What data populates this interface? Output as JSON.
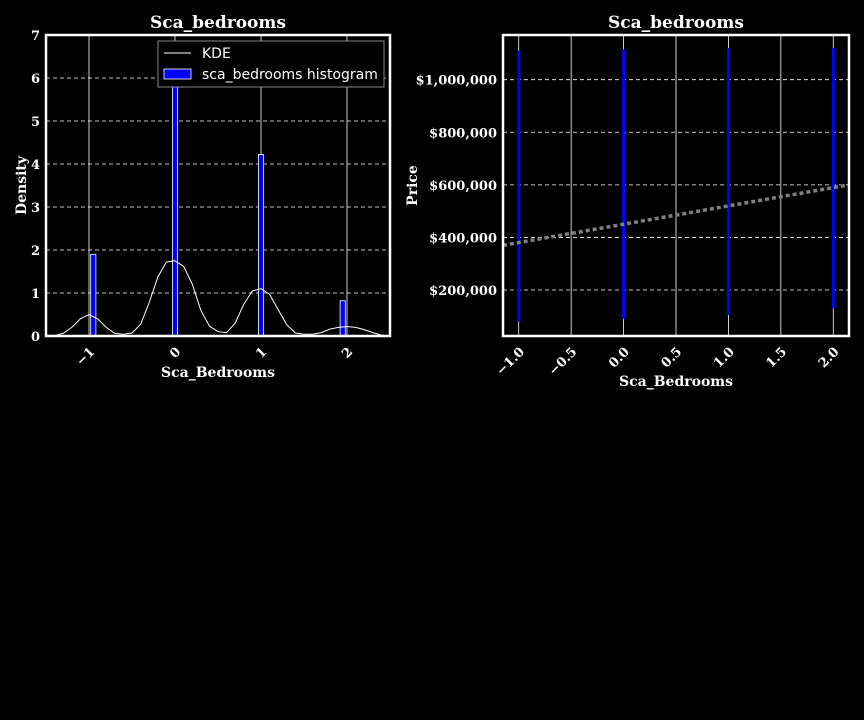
{
  "chart_data": [
    {
      "type": "bar",
      "title": "Sca_bedrooms",
      "xlabel": "Sca_Bedrooms",
      "ylabel": "Density",
      "xlim": [
        -1.5,
        2.5
      ],
      "ylim": [
        0,
        7
      ],
      "x_ticks": [
        -1,
        0,
        1,
        2
      ],
      "x_tick_labels": [
        "−1",
        "0",
        "1",
        "2"
      ],
      "y_ticks": [
        0,
        1,
        2,
        3,
        4,
        5,
        6,
        7
      ],
      "y_tick_labels": [
        "0",
        "1",
        "2",
        "3",
        "4",
        "5",
        "6",
        "7"
      ],
      "grid": "y",
      "legend_position": "top-right",
      "legend": [
        "KDE",
        "sca_bedrooms histogram"
      ],
      "series": [
        {
          "name": "sca_bedrooms histogram",
          "kind": "histogram",
          "color": "#0000ff",
          "bars": [
            {
              "x_left": -0.98,
              "x_right": -0.92,
              "value": 1.9
            },
            {
              "x_left": -0.03,
              "x_right": 0.03,
              "value": 6.7
            },
            {
              "x_left": 0.97,
              "x_right": 1.03,
              "value": 4.22
            },
            {
              "x_left": 1.92,
              "x_right": 1.98,
              "value": 0.82
            }
          ]
        },
        {
          "name": "KDE",
          "kind": "line",
          "color": "#ffffff",
          "x": [
            -1.5,
            -1.4,
            -1.3,
            -1.2,
            -1.1,
            -1.0,
            -0.9,
            -0.8,
            -0.7,
            -0.6,
            -0.5,
            -0.4,
            -0.3,
            -0.2,
            -0.1,
            0.0,
            0.1,
            0.2,
            0.3,
            0.4,
            0.5,
            0.6,
            0.7,
            0.8,
            0.9,
            1.0,
            1.1,
            1.2,
            1.3,
            1.4,
            1.5,
            1.6,
            1.7,
            1.8,
            1.9,
            2.0,
            2.1,
            2.2,
            2.3,
            2.4,
            2.5
          ],
          "y": [
            0.0,
            0.01,
            0.06,
            0.2,
            0.4,
            0.5,
            0.4,
            0.2,
            0.06,
            0.04,
            0.07,
            0.27,
            0.78,
            1.37,
            1.72,
            1.75,
            1.62,
            1.21,
            0.6,
            0.23,
            0.1,
            0.08,
            0.3,
            0.74,
            1.05,
            1.1,
            0.97,
            0.61,
            0.26,
            0.07,
            0.04,
            0.04,
            0.08,
            0.16,
            0.2,
            0.22,
            0.2,
            0.15,
            0.08,
            0.02,
            0.0
          ]
        }
      ]
    },
    {
      "type": "scatter",
      "title": "Sca_bedrooms",
      "xlabel": "Sca_Bedrooms",
      "ylabel": "Price",
      "xlim": [
        -1.15,
        2.15
      ],
      "ylim": [
        25000,
        1170000
      ],
      "x_ticks": [
        -1.0,
        -0.5,
        0.0,
        0.5,
        1.0,
        1.5,
        2.0
      ],
      "x_tick_labels": [
        "−1.0",
        "−0.5",
        "0.0",
        "0.5",
        "1.0",
        "1.5",
        "2.0"
      ],
      "y_ticks": [
        200000,
        400000,
        600000,
        800000,
        1000000
      ],
      "y_tick_labels": [
        "$200,000",
        "$400,000",
        "$600,000",
        "$800,000",
        "$1,000,000"
      ],
      "grid": "both",
      "series": [
        {
          "kind": "points",
          "color": "#0000ff",
          "columns": [
            {
              "x": -1.0,
              "y_min": 80000,
              "y_max": 1110000
            },
            {
              "x": 0.0,
              "y_min": 90000,
              "y_max": 1115000
            },
            {
              "x": 1.0,
              "y_min": 105000,
              "y_max": 1120000
            },
            {
              "x": 2.0,
              "y_min": 130000,
              "y_max": 1120000
            }
          ]
        },
        {
          "kind": "regression-line",
          "color": "#808080",
          "x": [
            -1.15,
            2.15
          ],
          "y": [
            370000,
            600000
          ]
        }
      ]
    }
  ]
}
